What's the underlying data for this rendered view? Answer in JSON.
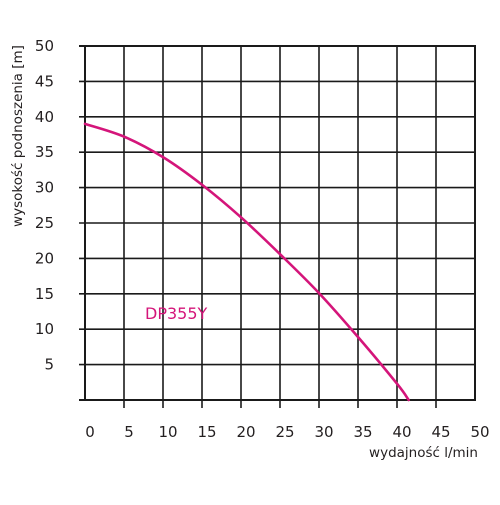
{
  "chart_data": {
    "type": "line",
    "xlabel": "wydajność l/min",
    "ylabel": "wysokość podnoszenia [m]",
    "xlim": [
      0,
      50
    ],
    "ylim": [
      0,
      50
    ],
    "x_ticks": [
      0,
      5,
      10,
      15,
      20,
      25,
      30,
      35,
      40,
      45,
      50
    ],
    "y_ticks": [
      5,
      10,
      15,
      20,
      25,
      30,
      35,
      40,
      45,
      50
    ],
    "grid": true,
    "series": [
      {
        "name": "DP355Y",
        "color": "#d4157a",
        "x": [
          0,
          5,
          10,
          15,
          20,
          25,
          30,
          35,
          40,
          41.5
        ],
        "y": [
          39,
          37.2,
          34.3,
          30.4,
          25.8,
          20.6,
          15.1,
          8.9,
          2.3,
          0
        ]
      }
    ]
  }
}
